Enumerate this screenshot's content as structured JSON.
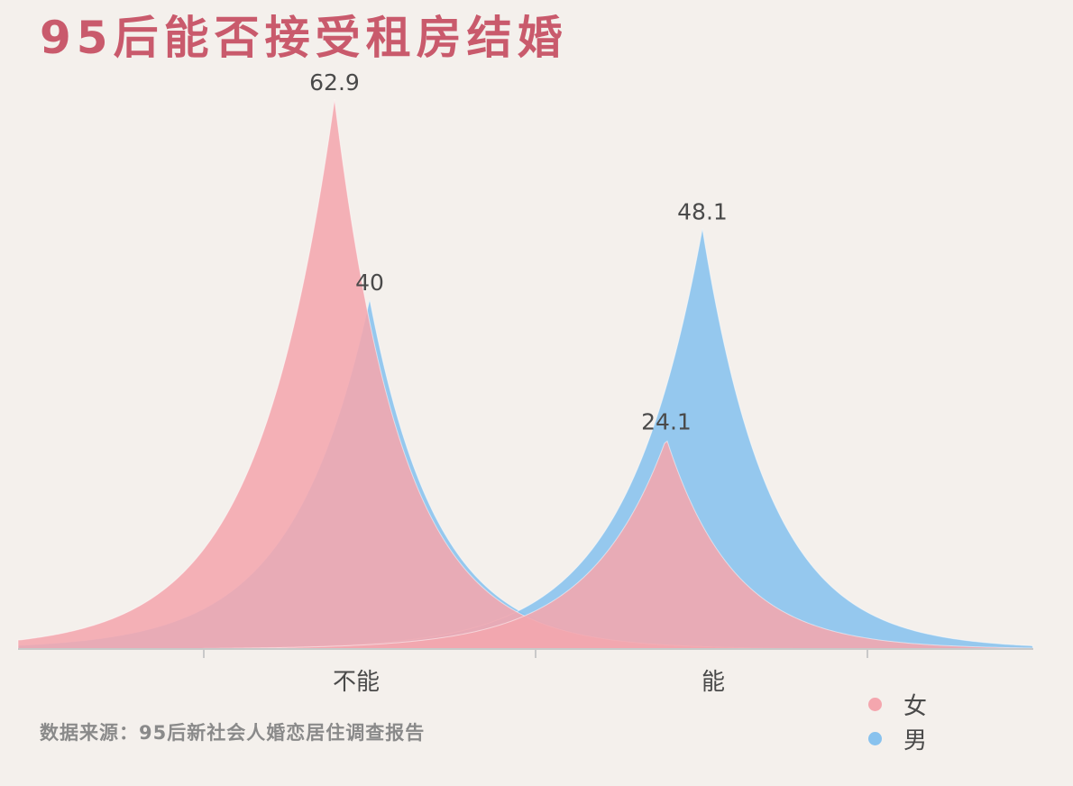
{
  "title": "95后能否接受租房结婚",
  "source": "数据来源：95后新社会人婚恋居住调查报告",
  "chart_data": {
    "type": "area",
    "title": "95后能否接受租房结婚",
    "categories": [
      "不能",
      "能"
    ],
    "series": [
      {
        "name": "女",
        "values": [
          62.9,
          24.1
        ],
        "color": "#f4a6ae"
      },
      {
        "name": "男",
        "values": [
          40,
          48.1
        ],
        "color": "#88c2ee"
      }
    ],
    "ylim": [
      0,
      62.9
    ],
    "grid": false,
    "legend_position": "bottom-right"
  }
}
